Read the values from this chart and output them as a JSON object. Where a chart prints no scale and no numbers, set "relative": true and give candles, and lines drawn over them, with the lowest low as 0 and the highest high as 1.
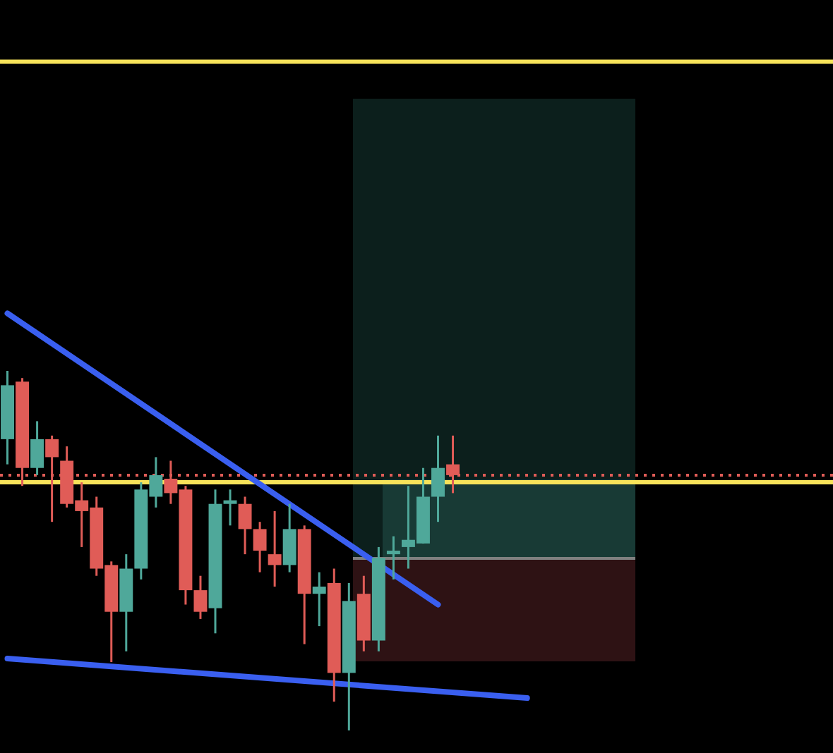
{
  "chart_data": {
    "type": "candlestick",
    "relative": true,
    "categories": [
      null,
      null,
      null,
      null,
      null,
      null,
      null,
      null,
      null,
      null,
      null,
      null,
      null,
      null,
      null,
      null,
      null,
      null,
      null,
      null,
      null,
      null,
      null,
      null,
      null,
      null,
      null,
      null,
      null,
      null,
      null,
      null,
      null,
      null,
      null,
      null,
      null,
      null,
      null,
      null,
      null,
      null,
      null,
      null,
      null,
      null,
      null,
      null,
      null,
      null,
      null,
      null,
      null,
      null,
      null,
      null
    ],
    "ohlc": [
      [
        0.81,
        1,
        0.74,
        0.96
      ],
      [
        0.97,
        0.98,
        0.68,
        0.73
      ],
      [
        0.73,
        0.86,
        0.71,
        0.81
      ],
      [
        0.81,
        0.82,
        0.58,
        0.76
      ],
      [
        0.75,
        0.79,
        0.62,
        0.63
      ],
      [
        0.64,
        0.69,
        0.51,
        0.61
      ],
      [
        0.62,
        0.65,
        0.43,
        0.45
      ],
      [
        0.46,
        0.47,
        0.19,
        0.33
      ],
      [
        0.33,
        0.49,
        0.22,
        0.45
      ],
      [
        0.45,
        0.69,
        0.42,
        0.67
      ],
      [
        0.65,
        0.76,
        0.62,
        0.71
      ],
      [
        0.7,
        0.75,
        0.63,
        0.66
      ],
      [
        0.67,
        0.68,
        0.35,
        0.39
      ],
      [
        0.39,
        0.43,
        0.31,
        0.33
      ],
      [
        0.34,
        0.67,
        0.27,
        0.63
      ],
      [
        0.63,
        0.67,
        0.57,
        0.64
      ],
      [
        0.63,
        0.65,
        0.49,
        0.56
      ],
      [
        0.56,
        0.58,
        0.44,
        0.5
      ],
      [
        0.49,
        0.61,
        0.4,
        0.46
      ],
      [
        0.46,
        0.63,
        0.44,
        0.56
      ],
      [
        0.56,
        0.57,
        0.24,
        0.38
      ],
      [
        0.38,
        0.44,
        0.29,
        0.4
      ],
      [
        0.41,
        0.45,
        0.08,
        0.16
      ],
      [
        0.16,
        0.41,
        0,
        0.36
      ],
      [
        0.38,
        0.43,
        0.22,
        0.25
      ],
      [
        0.25,
        0.51,
        0.22,
        0.48
      ],
      [
        0.49,
        0.54,
        0.42,
        0.5
      ],
      [
        0.51,
        0.68,
        0.45,
        0.53
      ],
      [
        0.52,
        0.73,
        0.52,
        0.65
      ],
      [
        0.65,
        0.82,
        0.58,
        0.73
      ],
      [
        0.74,
        0.82,
        0.66,
        0.71
      ],
      null,
      null,
      null,
      null,
      null,
      null,
      null,
      null,
      null,
      null,
      null,
      null,
      null,
      null,
      null,
      null,
      null,
      null,
      null,
      null,
      null,
      null,
      null,
      null,
      null
    ],
    "colors": [
      "#4fa89a",
      "#e05c57",
      "#4fa89a",
      "#e05c57",
      "#e05c57",
      "#e05c57",
      "#e05c57",
      "#e05c57",
      "#4fa89a",
      "#4fa89a",
      "#4fa89a",
      "#e05c57",
      "#e05c57",
      "#e05c57",
      "#4fa89a",
      "#4fa89a",
      "#e05c57",
      "#e05c57",
      "#e05c57",
      "#4fa89a",
      "#e05c57",
      "#4fa89a",
      "#e05c57",
      "#4fa89a",
      "#e05c57",
      "#4fa89a",
      "#4fa89a",
      "#4fa89a",
      "#4fa89a",
      "#4fa89a",
      "#e05c57",
      null,
      null,
      null,
      null,
      null,
      null,
      null,
      null,
      null,
      null,
      null,
      null,
      null,
      null,
      null,
      null,
      null,
      null,
      null,
      null,
      null,
      null,
      null,
      null,
      null
    ],
    "series": [
      {
        "type": "line",
        "color": "#3a5ff0",
        "values": [
          1.16,
          null,
          null,
          null,
          null,
          null,
          null,
          null,
          null,
          null,
          null,
          null,
          null,
          null,
          null,
          null,
          null,
          null,
          null,
          null,
          null,
          null,
          null,
          null,
          null,
          null,
          null,
          null,
          null,
          0.35,
          null,
          null,
          null,
          null,
          null,
          null,
          null,
          null,
          null,
          null,
          null,
          null,
          null,
          null,
          null,
          null,
          null,
          null,
          null,
          null,
          null,
          null,
          null,
          null,
          null,
          null
        ]
      },
      {
        "type": "line",
        "color": "#3a5ff0",
        "values": [
          0.2,
          null,
          null,
          null,
          null,
          null,
          null,
          null,
          null,
          null,
          null,
          null,
          null,
          null,
          null,
          null,
          null,
          null,
          null,
          null,
          null,
          null,
          null,
          null,
          null,
          null,
          null,
          null,
          null,
          null,
          null,
          null,
          null,
          null,
          null,
          0.09,
          null,
          null,
          null,
          null,
          null,
          null,
          null,
          null,
          null,
          null,
          null,
          null,
          null,
          null,
          null,
          null,
          null,
          null,
          null,
          null
        ]
      }
    ],
    "ref_lines": [
      {
        "axis": "y",
        "value": 1.86,
        "color": "#f7e35a",
        "line_style": "solid"
      },
      {
        "axis": "y",
        "value": 0.69,
        "color": "#f7e35a",
        "line_style": "solid"
      },
      {
        "axis": "y",
        "value": 0.71,
        "color": "#e05c57",
        "line_style": "dotted"
      }
    ],
    "tick_labels": false
  }
}
